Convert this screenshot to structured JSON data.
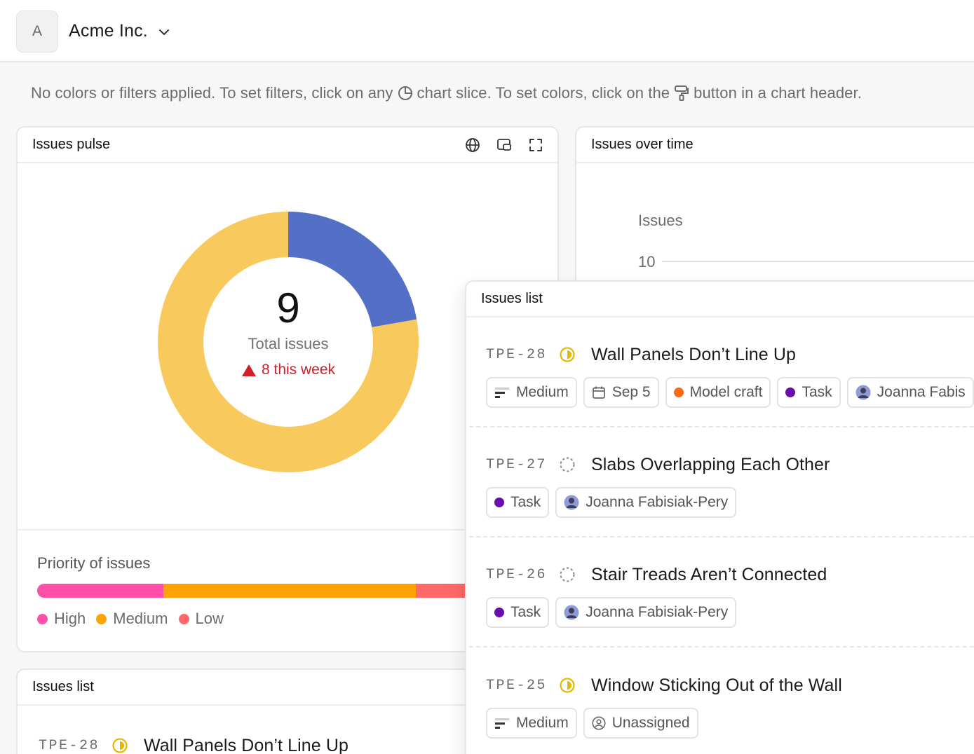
{
  "org": {
    "initial": "A",
    "name": "Acme Inc."
  },
  "hint": {
    "part1": "No colors or filters applied. To set filters, click on any",
    "part2": "chart slice. To set colors, click on the",
    "part3": "button in a chart header."
  },
  "pulse": {
    "title": "Issues pulse",
    "total": "9",
    "total_label": "Total issues",
    "week": "8 this week",
    "priority_title": "Priority of issues",
    "legend": [
      {
        "label": "High",
        "color": "#ff4fa8"
      },
      {
        "label": "Medium",
        "color": "#ffa305"
      },
      {
        "label": "Low",
        "color": "#ff6868"
      }
    ],
    "donut_colors": {
      "blue": "#5470c6",
      "yellow": "#f8c95c"
    }
  },
  "chart_data": {
    "type": "pie",
    "title": "Issues pulse",
    "values": [
      2,
      7
    ],
    "colors": [
      "#5470c6",
      "#f8c95c"
    ],
    "center_value": 9
  },
  "priority_bar": {
    "values": [
      3,
      6,
      3
    ],
    "colors": [
      "#ff4fa8",
      "#ffa305",
      "#ff6868"
    ]
  },
  "overtime": {
    "title": "Issues over time",
    "y_title": "Issues",
    "y_tick": "10"
  },
  "list_bottom": {
    "title": "Issues list",
    "first": {
      "id": "TPE-28",
      "title": "Wall Panels Don’t Line Up"
    }
  },
  "list_pop": {
    "title": "Issues list",
    "issues": [
      {
        "id": "TPE-28",
        "title": "Wall Panels Don’t Line Up",
        "status": "in-progress",
        "chips": {
          "priority": "Medium",
          "date": "Sep 5",
          "label": "Model craft",
          "type": "Task",
          "assignee": "Joanna Fabis"
        }
      },
      {
        "id": "TPE-27",
        "title": "Slabs Overlapping Each Other",
        "status": "todo",
        "chips": {
          "type": "Task",
          "assignee": "Joanna Fabisiak-Pery"
        }
      },
      {
        "id": "TPE-26",
        "title": "Stair Treads Aren’t Connected",
        "status": "todo",
        "chips": {
          "type": "Task",
          "assignee": "Joanna Fabisiak-Pery"
        }
      },
      {
        "id": "TPE-25",
        "title": "Window Sticking Out of the Wall",
        "status": "in-progress",
        "chips": {
          "priority": "Medium",
          "assignee": "Unassigned"
        }
      }
    ]
  },
  "colors": {
    "task_purple": "#6a0dad",
    "label_orange": "#ff6a13",
    "status_yellow": "#e5b800"
  }
}
